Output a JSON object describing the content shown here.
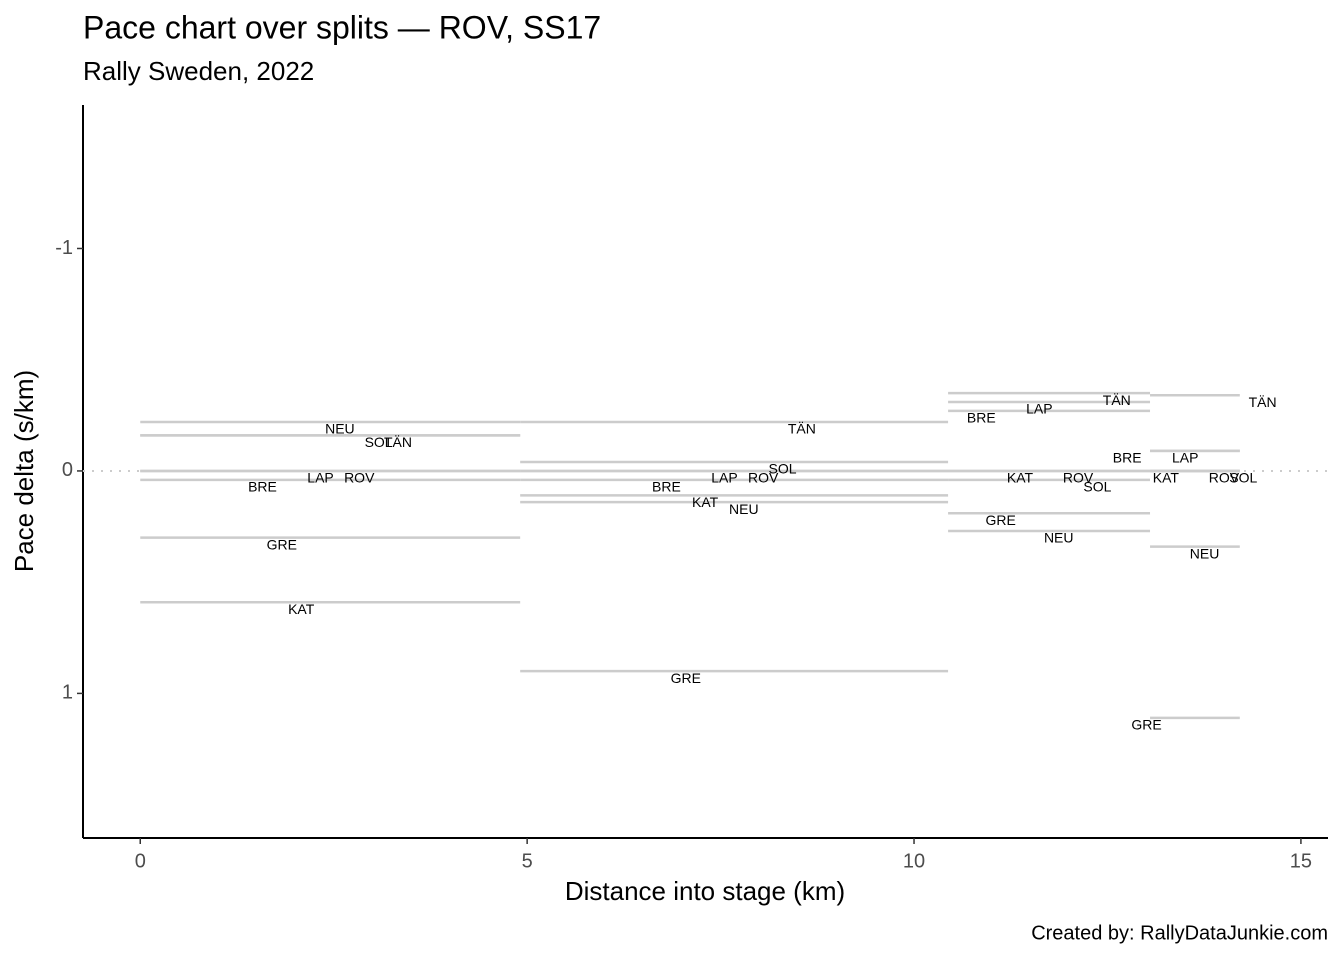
{
  "chart_data": {
    "type": "segment",
    "title": "Pace chart over splits — ROV, SS17",
    "subtitle": "Rally Sweden, 2022",
    "x_label": "Distance into stage (km)",
    "y_label": "Pace delta (s/km)",
    "caption": "Created by: RallyDataJunkie.com",
    "breaks": [
      0,
      4.91,
      10.44,
      13.05,
      14.21
    ],
    "series": [
      {
        "name": "BRE",
        "values": [
          0.04,
          0.04,
          -0.27,
          -0.09
        ]
      },
      {
        "name": "GRE",
        "values": [
          0.3,
          0.9,
          0.19,
          1.11
        ]
      },
      {
        "name": "KAT",
        "values": [
          0.59,
          0.11,
          0.0,
          0.0
        ]
      },
      {
        "name": "LAP",
        "values": [
          0.0,
          0.0,
          -0.31,
          -0.09
        ]
      },
      {
        "name": "NEU",
        "values": [
          -0.22,
          0.14,
          0.27,
          0.34
        ]
      },
      {
        "name": "ROV",
        "values": [
          0,
          0,
          0,
          0
        ]
      },
      {
        "name": "SOL",
        "values": [
          -0.16,
          -0.04,
          0.04,
          0.0
        ]
      },
      {
        "name": "TÄN",
        "values": [
          -0.16,
          -0.22,
          -0.35,
          -0.34
        ]
      }
    ],
    "color": "#cccccc",
    "hline": 0,
    "xlim": [
      -0.74,
      15.35
    ],
    "xticks": [
      0,
      5,
      10,
      15
    ],
    "ylim": [
      -1.645,
      1.65
    ],
    "yticks": [
      -1,
      0,
      1
    ],
    "y_reversed": true
  }
}
